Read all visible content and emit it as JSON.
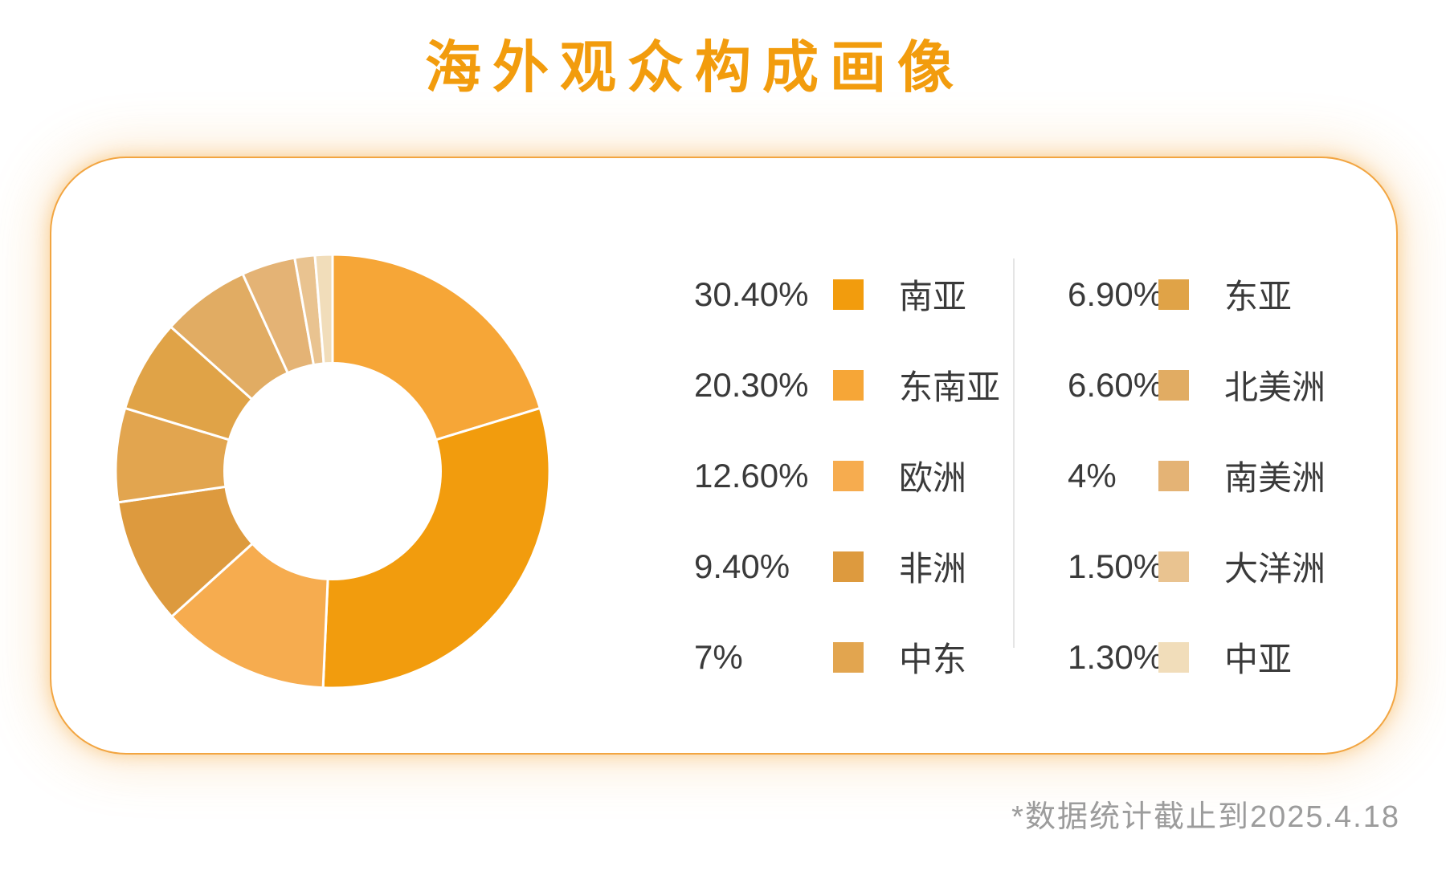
{
  "title": "海外观众构成画像",
  "footnote": "*数据统计截止到2025.4.18",
  "colors": {
    "title_orange": "#F29C0D",
    "card_border": "#F2A541",
    "card_glow": "rgba(244,166,56,0.35)",
    "legend_text": "#3A3A3A",
    "divider": "#E5E5E5",
    "footnote_gray": "#9C9C9C",
    "background": "#FFFFFF"
  },
  "chart_data": {
    "type": "pie",
    "title": "海外观众构成画像",
    "donut": true,
    "start_angle_deg": 0,
    "direction": "clockwise",
    "inner_radius_ratio": 0.505,
    "slice_gap_stroke": "#FFFFFF",
    "legend_position": "right",
    "slices": [
      {
        "label": "南亚",
        "value": 30.4,
        "display": "30.40%",
        "color": "#F29C0D"
      },
      {
        "label": "东南亚",
        "value": 20.3,
        "display": "20.30%",
        "color": "#F6A637"
      },
      {
        "label": "欧洲",
        "value": 12.6,
        "display": "12.60%",
        "color": "#F6AC4F"
      },
      {
        "label": "非洲",
        "value": 9.4,
        "display": "9.40%",
        "color": "#DD9A3E"
      },
      {
        "label": "中东",
        "value": 7,
        "display": "7%",
        "color": "#E2A54F"
      },
      {
        "label": "东亚",
        "value": 6.9,
        "display": "6.90%",
        "color": "#E0A347"
      },
      {
        "label": "北美洲",
        "value": 6.6,
        "display": "6.60%",
        "color": "#E1AC63"
      },
      {
        "label": "南美洲",
        "value": 4,
        "display": "4%",
        "color": "#E4B375"
      },
      {
        "label": "大洋洲",
        "value": 1.5,
        "display": "1.50%",
        "color": "#E9C390"
      },
      {
        "label": "中亚",
        "value": 1.3,
        "display": "1.30%",
        "color": "#F1DDBA"
      }
    ],
    "draw_order": [
      1,
      0,
      2,
      3,
      4,
      5,
      6,
      7,
      8,
      9
    ],
    "legend_columns": [
      [
        0,
        1,
        2,
        3,
        4
      ],
      [
        5,
        6,
        7,
        8,
        9
      ]
    ]
  }
}
